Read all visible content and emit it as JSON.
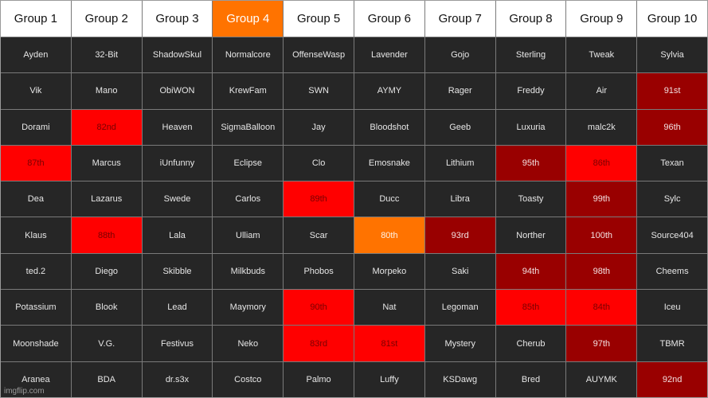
{
  "colors": {
    "bright-red": "#ff0000",
    "dark-red": "#990000",
    "orange": "#ff7300",
    "cell-default": "#262626",
    "header-default": "#ffffff"
  },
  "headers": [
    {
      "label": "Group 1",
      "style": ""
    },
    {
      "label": "Group 2",
      "style": ""
    },
    {
      "label": "Group 3",
      "style": ""
    },
    {
      "label": "Group 4",
      "style": "orange"
    },
    {
      "label": "Group 5",
      "style": ""
    },
    {
      "label": "Group 6",
      "style": ""
    },
    {
      "label": "Group 7",
      "style": ""
    },
    {
      "label": "Group 8",
      "style": ""
    },
    {
      "label": "Group 9",
      "style": ""
    },
    {
      "label": "Group 10",
      "style": ""
    }
  ],
  "rows": [
    [
      {
        "text": "Ayden",
        "style": ""
      },
      {
        "text": "32-Bit",
        "style": ""
      },
      {
        "text": "ShadowSkul",
        "style": ""
      },
      {
        "text": "Normalcore",
        "style": ""
      },
      {
        "text": "OffenseWasp",
        "style": ""
      },
      {
        "text": "Lavender",
        "style": ""
      },
      {
        "text": "Gojo",
        "style": ""
      },
      {
        "text": "Sterling",
        "style": ""
      },
      {
        "text": "Tweak",
        "style": ""
      },
      {
        "text": "Sylvia",
        "style": ""
      }
    ],
    [
      {
        "text": "Vik",
        "style": ""
      },
      {
        "text": "Mano",
        "style": ""
      },
      {
        "text": "ObiWON",
        "style": ""
      },
      {
        "text": "KrewFam",
        "style": ""
      },
      {
        "text": "SWN",
        "style": ""
      },
      {
        "text": "AYMY",
        "style": ""
      },
      {
        "text": "Rager",
        "style": ""
      },
      {
        "text": "Freddy",
        "style": ""
      },
      {
        "text": "Air",
        "style": ""
      },
      {
        "text": "91st",
        "style": "dark-red"
      }
    ],
    [
      {
        "text": "Dorami",
        "style": ""
      },
      {
        "text": "82nd",
        "style": "bright-red"
      },
      {
        "text": "Heaven",
        "style": ""
      },
      {
        "text": "SigmaBalloon",
        "style": ""
      },
      {
        "text": "Jay",
        "style": ""
      },
      {
        "text": "Bloodshot",
        "style": ""
      },
      {
        "text": "Geeb",
        "style": ""
      },
      {
        "text": "Luxuria",
        "style": ""
      },
      {
        "text": "malc2k",
        "style": ""
      },
      {
        "text": "96th",
        "style": "dark-red"
      }
    ],
    [
      {
        "text": "87th",
        "style": "bright-red"
      },
      {
        "text": "Marcus",
        "style": ""
      },
      {
        "text": "iUnfunny",
        "style": ""
      },
      {
        "text": "Eclipse",
        "style": ""
      },
      {
        "text": "Clo",
        "style": ""
      },
      {
        "text": "Emosnake",
        "style": ""
      },
      {
        "text": "Lithium",
        "style": ""
      },
      {
        "text": "95th",
        "style": "dark-red"
      },
      {
        "text": "86th",
        "style": "bright-red"
      },
      {
        "text": "Texan",
        "style": ""
      }
    ],
    [
      {
        "text": "Dea",
        "style": ""
      },
      {
        "text": "Lazarus",
        "style": ""
      },
      {
        "text": "Swede",
        "style": ""
      },
      {
        "text": "Carlos",
        "style": ""
      },
      {
        "text": "89th",
        "style": "bright-red"
      },
      {
        "text": "Ducc",
        "style": ""
      },
      {
        "text": "Libra",
        "style": ""
      },
      {
        "text": "Toasty",
        "style": ""
      },
      {
        "text": "99th",
        "style": "dark-red"
      },
      {
        "text": "Sylc",
        "style": ""
      }
    ],
    [
      {
        "text": "Klaus",
        "style": ""
      },
      {
        "text": "88th",
        "style": "bright-red"
      },
      {
        "text": "Lala",
        "style": ""
      },
      {
        "text": "Ulliam",
        "style": ""
      },
      {
        "text": "Scar",
        "style": ""
      },
      {
        "text": "80th",
        "style": "orange"
      },
      {
        "text": "93rd",
        "style": "dark-red"
      },
      {
        "text": "Norther",
        "style": ""
      },
      {
        "text": "100th",
        "style": "dark-red"
      },
      {
        "text": "Source404",
        "style": ""
      }
    ],
    [
      {
        "text": "ted.2",
        "style": ""
      },
      {
        "text": "Diego",
        "style": ""
      },
      {
        "text": "Skibble",
        "style": ""
      },
      {
        "text": "Milkbuds",
        "style": ""
      },
      {
        "text": "Phobos",
        "style": ""
      },
      {
        "text": "Morpeko",
        "style": ""
      },
      {
        "text": "Saki",
        "style": ""
      },
      {
        "text": "94th",
        "style": "dark-red"
      },
      {
        "text": "98th",
        "style": "dark-red"
      },
      {
        "text": "Cheems",
        "style": ""
      }
    ],
    [
      {
        "text": "Potassium",
        "style": ""
      },
      {
        "text": "Blook",
        "style": ""
      },
      {
        "text": "Lead",
        "style": ""
      },
      {
        "text": "Maymory",
        "style": ""
      },
      {
        "text": "90th",
        "style": "bright-red"
      },
      {
        "text": "Nat",
        "style": ""
      },
      {
        "text": "Legoman",
        "style": ""
      },
      {
        "text": "85th",
        "style": "bright-red"
      },
      {
        "text": "84th",
        "style": "bright-red"
      },
      {
        "text": "Iceu",
        "style": ""
      }
    ],
    [
      {
        "text": "Moonshade",
        "style": ""
      },
      {
        "text": "V.G.",
        "style": ""
      },
      {
        "text": "Festivus",
        "style": ""
      },
      {
        "text": "Neko",
        "style": ""
      },
      {
        "text": "83rd",
        "style": "bright-red"
      },
      {
        "text": "81st",
        "style": "bright-red"
      },
      {
        "text": "Mystery",
        "style": ""
      },
      {
        "text": "Cherub",
        "style": ""
      },
      {
        "text": "97th",
        "style": "dark-red"
      },
      {
        "text": "TBMR",
        "style": ""
      }
    ],
    [
      {
        "text": "Aranea",
        "style": ""
      },
      {
        "text": "BDA",
        "style": ""
      },
      {
        "text": "dr.s3x",
        "style": ""
      },
      {
        "text": "Costco",
        "style": ""
      },
      {
        "text": "Palmo",
        "style": ""
      },
      {
        "text": "Luffy",
        "style": ""
      },
      {
        "text": "KSDawg",
        "style": ""
      },
      {
        "text": "Bred",
        "style": ""
      },
      {
        "text": "AUYMK",
        "style": ""
      },
      {
        "text": "92nd",
        "style": "dark-red"
      }
    ]
  ],
  "watermark": "imgflip.com"
}
